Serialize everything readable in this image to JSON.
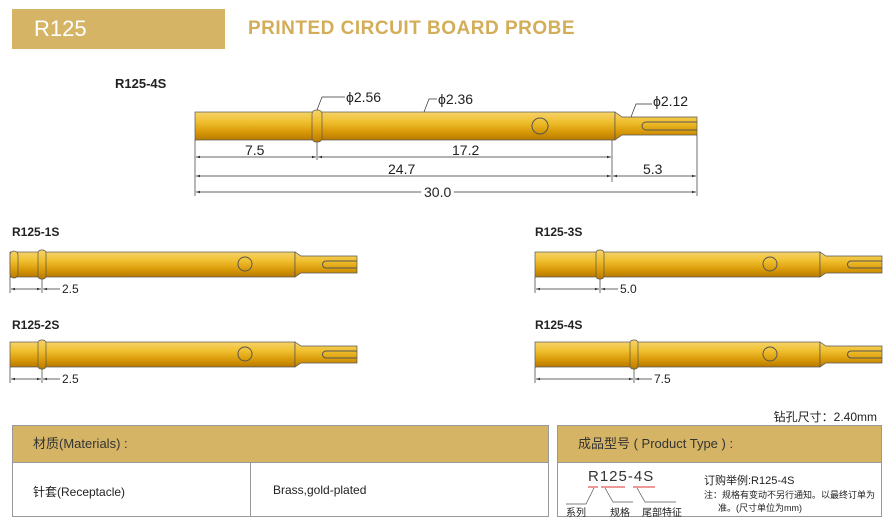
{
  "header": {
    "model": "R125",
    "title": "PRINTED CIRCUIT BOARD  PROBE"
  },
  "main_probe": {
    "label": "R125-4S",
    "diameters": [
      "ϕ2.56",
      "ϕ2.36",
      "ϕ2.12"
    ],
    "dims": [
      "7.5",
      "17.2",
      "24.7",
      "5.3",
      "30.0"
    ]
  },
  "variants": [
    {
      "label": "R125-1S",
      "dim": "2.5"
    },
    {
      "label": "R125-3S",
      "dim": "5.0"
    },
    {
      "label": "R125-2S",
      "dim": "2.5"
    },
    {
      "label": "R125-4S",
      "dim": "7.5"
    }
  ],
  "colors": {
    "gold": "#d5b565",
    "probe": "#e0a815"
  },
  "drill": "钻孔尺寸：2.40mm",
  "materials": {
    "header": "材质(Materials) :",
    "part": "针套(Receptacle)",
    "material": "Brass,gold-plated"
  },
  "product_type": {
    "header": "成品型号 ( Product Type ) :",
    "code": "R125-4S",
    "parts": [
      "系列",
      "规格",
      "尾部特征"
    ],
    "example": "订购举例:R125-4S",
    "note1": "注：规格有变动不另行通知。以最终订单为",
    "note2": "准。(尺寸单位为mm)"
  }
}
